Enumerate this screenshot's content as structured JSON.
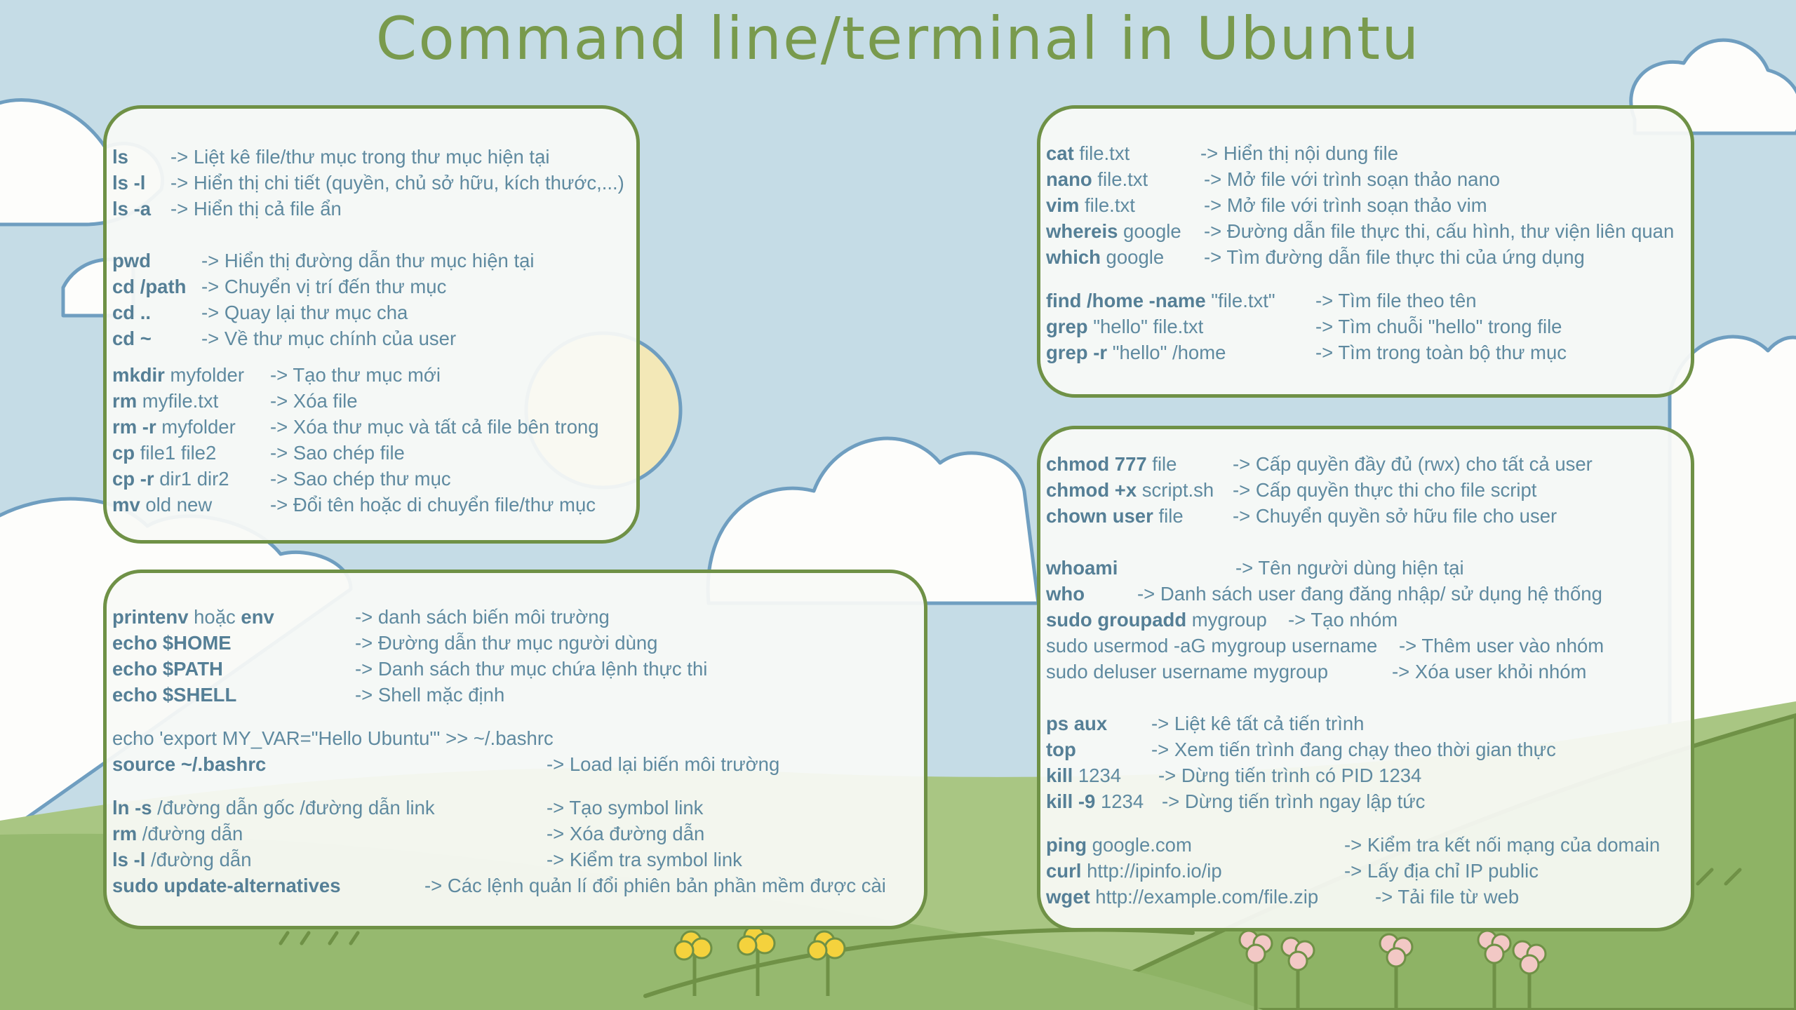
{
  "title": "Command line/terminal in Ubuntu",
  "colors": {
    "sky": "#c5dce6",
    "grass": "#93b76b",
    "card_border": "#6f9146",
    "text": "#5f8aa0",
    "title": "#799a4d"
  },
  "card1": [
    {
      "cmd": "ls",
      "arg": "",
      "desc": "-> Liệt kê file/thư mục trong thư mục hiện tại"
    },
    {
      "cmd": "ls -l",
      "arg": "",
      "desc": "-> Hiển thị chi tiết (quyền, chủ sở hữu, kích thước,...)"
    },
    {
      "cmd": "ls -a",
      "arg": "",
      "desc": "-> Hiển thị cả file ẩn"
    },
    {
      "cmd": "pwd",
      "arg": "",
      "desc": "-> Hiển thị đường dẫn thư mục hiện tại"
    },
    {
      "cmd": "cd /path",
      "arg": "",
      "desc": "-> Chuyển vị trí đến thư mục"
    },
    {
      "cmd": "cd ..",
      "arg": "",
      "desc": "-> Quay lại thư mục cha"
    },
    {
      "cmd": "cd ~",
      "arg": "",
      "desc": "-> Về thư mục chính của user"
    },
    {
      "cmd": "mkdir",
      "arg": "myfolder",
      "desc": "-> Tạo thư mục mới"
    },
    {
      "cmd": "rm",
      "arg": "myfile.txt",
      "desc": "-> Xóa file"
    },
    {
      "cmd": "rm -r",
      "arg": "myfolder",
      "desc": "-> Xóa thư mục và tất cả file bên trong"
    },
    {
      "cmd": "cp",
      "arg": "file1 file2",
      "desc": "-> Sao chép file"
    },
    {
      "cmd": "cp -r",
      "arg": "dir1 dir2",
      "desc": "-> Sao chép thư mục"
    },
    {
      "cmd": "mv",
      "arg": "old new",
      "desc": "-> Đổi tên hoặc di chuyển file/thư mục"
    }
  ],
  "card2": [
    {
      "cmd": "cat",
      "arg": "file.txt",
      "desc": "-> Hiển thị nội dung file"
    },
    {
      "cmd": "nano",
      "arg": "file.txt",
      "desc": "-> Mở file với trình soạn thảo nano"
    },
    {
      "cmd": "vim",
      "arg": "file.txt",
      "desc": "-> Mở file với trình soạn thảo vim"
    },
    {
      "cmd": "whereis",
      "arg": "google",
      "desc": "-> Đường dẫn file thực thi, cấu hình, thư viện liên quan"
    },
    {
      "cmd": "which",
      "arg": "google",
      "desc": "-> Tìm đường dẫn file thực thi của ứng dụng"
    },
    {
      "cmd": "find /home -name",
      "arg": "\"file.txt\"",
      "desc": "-> Tìm file theo tên"
    },
    {
      "cmd": "grep",
      "arg": "\"hello\" file.txt",
      "desc": "-> Tìm chuỗi \"hello\" trong file"
    },
    {
      "cmd": "grep -r",
      "arg": "\"hello\" /home",
      "desc": "-> Tìm trong toàn bộ thư mục"
    }
  ],
  "card3": [
    {
      "cmd": "printenv",
      "arg": " hoặc ",
      "cmd2": "env",
      "desc": "-> danh sách biến môi trường"
    },
    {
      "cmd": "echo $HOME",
      "arg": "",
      "desc": "-> Đường dẫn thư mục người dùng"
    },
    {
      "cmd": "echo $PATH",
      "arg": "",
      "desc": "-> Danh sách thư mục chứa lệnh thực thi"
    },
    {
      "cmd": "echo $SHELL",
      "arg": "",
      "desc": "-> Shell mặc định"
    },
    {
      "cmd": "",
      "arg": "echo 'export MY_VAR=\"Hello Ubuntu\"' >> ~/.bashrc",
      "desc": ""
    },
    {
      "cmd": "source ~/.bashrc",
      "arg": "",
      "desc": "-> Load lại biến môi trường"
    },
    {
      "cmd": "ln -s",
      "arg": "/đường dẫn gốc /đường dẫn link",
      "desc": "-> Tạo symbol link"
    },
    {
      "cmd": "rm",
      "arg": "/đường dẫn",
      "desc": "-> Xóa đường dẫn"
    },
    {
      "cmd": "ls -l",
      "arg": "/đường dẫn",
      "desc": "-> Kiểm tra symbol link"
    },
    {
      "cmd": "sudo update-alternatives",
      "arg": "",
      "desc": "-> Các lệnh quản lí đổi phiên bản phần mềm được cài"
    }
  ],
  "card4": [
    {
      "cmd": "chmod 777",
      "arg": "file",
      "desc": "-> Cấp quyền đầy đủ (rwx) cho tất cả user"
    },
    {
      "cmd": "chmod +x",
      "arg": "script.sh",
      "desc": "-> Cấp quyền thực thi cho file script"
    },
    {
      "cmd": "chown user",
      "arg": "file",
      "desc": "-> Chuyển quyền sở hữu file cho user"
    },
    {
      "cmd": "whoami",
      "arg": "",
      "desc": "-> Tên người dùng hiện tại"
    },
    {
      "cmd": "who",
      "arg": "",
      "desc": "-> Danh sách user đang đăng nhập/ sử dụng hệ thống"
    },
    {
      "cmd": "sudo groupadd",
      "arg": "mygroup",
      "desc": "-> Tạo nhóm"
    },
    {
      "cmd": "",
      "arg": "sudo usermod -aG mygroup username",
      "desc": "-> Thêm user vào nhóm"
    },
    {
      "cmd": "",
      "arg": "sudo deluser username mygroup",
      "desc": "-> Xóa user khỏi nhóm"
    },
    {
      "cmd": "ps aux",
      "arg": "",
      "desc": "-> Liệt kê tất cả tiến trình"
    },
    {
      "cmd": "top",
      "arg": "",
      "desc": "-> Xem tiến trình đang chạy theo thời gian thực"
    },
    {
      "cmd": "kill",
      "arg": "1234",
      "desc": "-> Dừng tiến trình có PID 1234"
    },
    {
      "cmd": "kill -9",
      "arg": "1234",
      "desc": "-> Dừng tiến trình ngay lập tức"
    },
    {
      "cmd": "ping",
      "arg": "google.com",
      "desc": "-> Kiểm tra kết nối mạng của domain"
    },
    {
      "cmd": "curl",
      "arg": "http://ipinfo.io/ip",
      "desc": "-> Lấy địa chỉ IP public"
    },
    {
      "cmd": "wget",
      "arg": "http://example.com/file.zip",
      "desc": "-> Tải file từ web"
    }
  ]
}
